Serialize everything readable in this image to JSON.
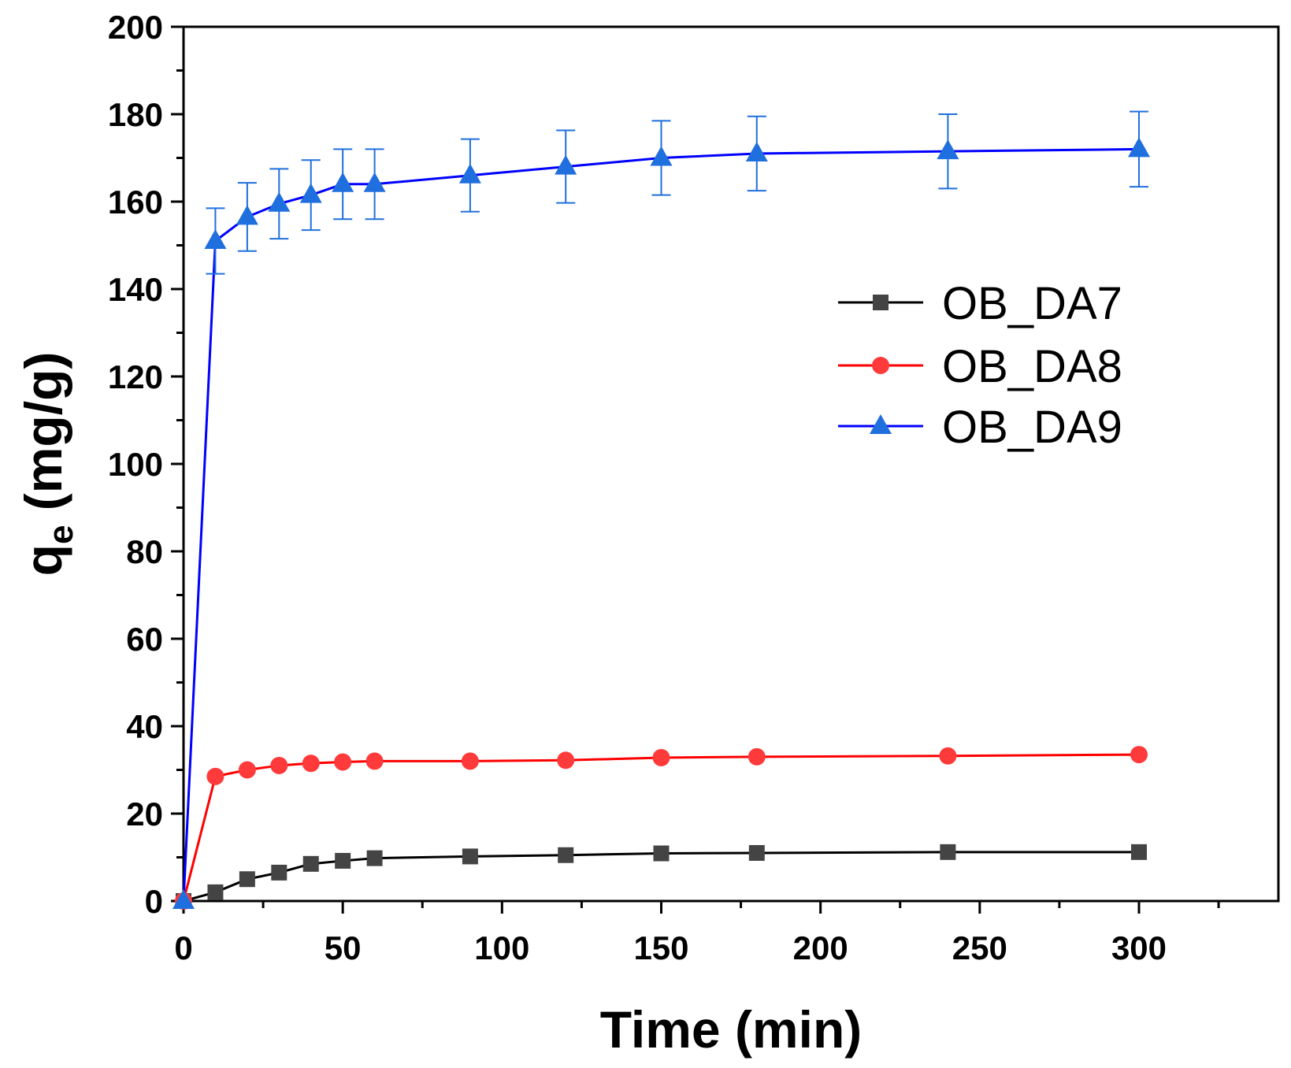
{
  "chart_data": {
    "type": "line",
    "xlabel": "Time (min)",
    "ylabel": "q",
    "ylabel_sub": "e",
    "ylabel_unit": " (mg/g)",
    "xlim": [
      0,
      325
    ],
    "ylim": [
      0,
      200
    ],
    "x_ticks": [
      0,
      50,
      100,
      150,
      200,
      250,
      300
    ],
    "y_ticks": [
      0,
      20,
      40,
      60,
      80,
      100,
      120,
      140,
      160,
      180,
      200
    ],
    "legend_position": "right",
    "series": [
      {
        "name": "OB_DA7",
        "color": "#000000",
        "marker_color": "#444444",
        "marker": "square",
        "x": [
          0,
          10,
          20,
          30,
          40,
          50,
          60,
          90,
          120,
          150,
          180,
          240,
          300
        ],
        "y": [
          0,
          2,
          5,
          6.5,
          8.5,
          9.2,
          9.8,
          10.2,
          10.5,
          10.9,
          11,
          11.2,
          11.2
        ],
        "err": [
          0,
          0,
          0,
          0,
          0,
          0,
          0,
          0,
          0,
          0,
          0,
          0,
          0
        ]
      },
      {
        "name": "OB_DA8",
        "color": "#ff0000",
        "marker_color": "#ff3a3a",
        "marker": "circle",
        "x": [
          0,
          10,
          20,
          30,
          40,
          50,
          60,
          90,
          120,
          150,
          180,
          240,
          300
        ],
        "y": [
          0,
          28.5,
          30,
          31,
          31.5,
          31.8,
          32,
          32,
          32.2,
          32.8,
          33,
          33.2,
          33.5
        ],
        "err": [
          0,
          0,
          0,
          0,
          0,
          0,
          0,
          0,
          0,
          0,
          0,
          0,
          0
        ]
      },
      {
        "name": "OB_DA9",
        "color": "#0000ff",
        "marker_color": "#1f6fde",
        "marker": "triangle",
        "x": [
          0,
          10,
          20,
          30,
          40,
          50,
          60,
          90,
          120,
          150,
          180,
          240,
          300
        ],
        "y": [
          0,
          151,
          156.5,
          159.5,
          161.5,
          164,
          164,
          166,
          168,
          170,
          171,
          171.5,
          172
        ],
        "err": [
          0,
          7.5,
          7.8,
          8,
          8,
          8,
          8,
          8.3,
          8.3,
          8.5,
          8.5,
          8.5,
          8.6
        ]
      }
    ]
  }
}
